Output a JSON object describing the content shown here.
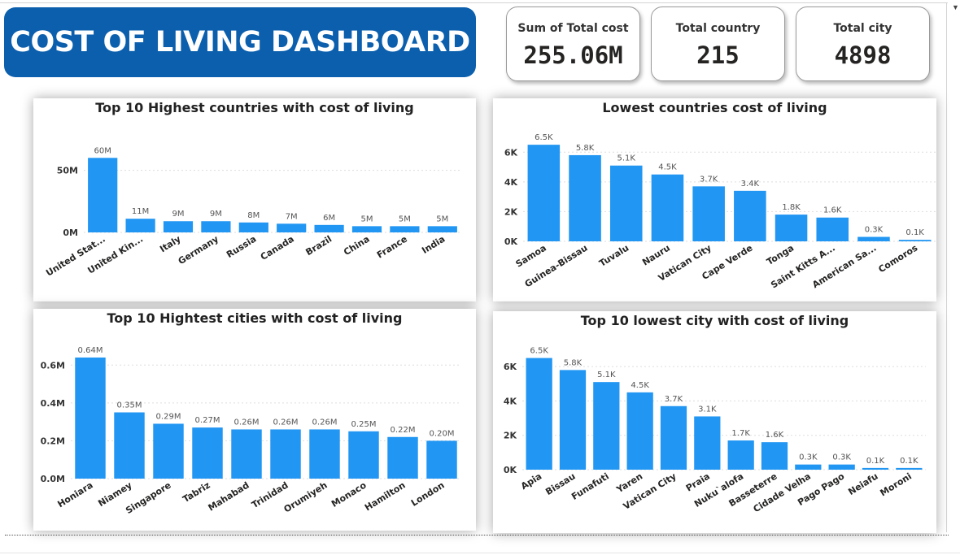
{
  "header": {
    "title": "COST OF LIVING DASHBOARD"
  },
  "kpis": [
    {
      "label": "Sum of Total cost",
      "value": "255.06M"
    },
    {
      "label": "Total country",
      "value": "215"
    },
    {
      "label": "Total city",
      "value": "4898"
    }
  ],
  "colors": {
    "bar": "#2196f3",
    "banner": "#0b5fad"
  },
  "chart_data": [
    {
      "type": "bar",
      "title": "Top 10 Highest countries with cost of living",
      "categories": [
        "United Stat...",
        "United Kin...",
        "Italy",
        "Germany",
        "Russia",
        "Canada",
        "Brazil",
        "China",
        "France",
        "India"
      ],
      "values": [
        60,
        11,
        9,
        9,
        8,
        7,
        6,
        5,
        5,
        5
      ],
      "data_labels": [
        "60M",
        "11M",
        "9M",
        "9M",
        "8M",
        "7M",
        "6M",
        "5M",
        "5M",
        "5M"
      ],
      "yticks": [
        0,
        50
      ],
      "ytick_labels": [
        "0M",
        "50M"
      ],
      "ylim": [
        0,
        70
      ],
      "unit": "M",
      "grid": true
    },
    {
      "type": "bar",
      "title": "Lowest countries cost of living",
      "categories": [
        "Samoa",
        "Guinea-Bissau",
        "Tuvalu",
        "Nauru",
        "Vatican City",
        "Cape Verde",
        "Tonga",
        "Saint Kitts A...",
        "American Sa...",
        "Comoros"
      ],
      "values": [
        6.5,
        5.8,
        5.1,
        4.5,
        3.7,
        3.4,
        1.8,
        1.6,
        0.3,
        0.1
      ],
      "data_labels": [
        "6.5K",
        "5.8K",
        "5.1K",
        "4.5K",
        "3.7K",
        "3.4K",
        "1.8K",
        "1.6K",
        "0.3K",
        "0.1K"
      ],
      "yticks": [
        0,
        2,
        4,
        6
      ],
      "ytick_labels": [
        "0K",
        "2K",
        "4K",
        "6K"
      ],
      "ylim": [
        0,
        7
      ],
      "unit": "K",
      "grid": true
    },
    {
      "type": "bar",
      "title": "Top 10 Hightest cities with cost of living",
      "categories": [
        "Honiara",
        "Niamey",
        "Singapore",
        "Tabriz",
        "Mahabad",
        "Trinidad",
        "Orumiyeh",
        "Monaco",
        "Hamilton",
        "London"
      ],
      "values": [
        0.64,
        0.35,
        0.29,
        0.27,
        0.26,
        0.26,
        0.26,
        0.25,
        0.22,
        0.2
      ],
      "data_labels": [
        "0.64M",
        "0.35M",
        "0.29M",
        "0.27M",
        "0.26M",
        "0.26M",
        "0.26M",
        "0.25M",
        "0.22M",
        "0.20M"
      ],
      "yticks": [
        0,
        0.2,
        0.4,
        0.6
      ],
      "ytick_labels": [
        "0.0M",
        "0.2M",
        "0.4M",
        "0.6M"
      ],
      "ylim": [
        0,
        0.7
      ],
      "unit": "M",
      "grid": true
    },
    {
      "type": "bar",
      "title": "Top 10 lowest city with cost of living",
      "categories": [
        "Apia",
        "Bissau",
        "Funafuti",
        "Yaren",
        "Vatican City",
        "Praia",
        "Nuku`alofa",
        "Basseterre",
        "Cidade Velha",
        "Pago Pago",
        "Neiafu",
        "Moroni"
      ],
      "values": [
        6.5,
        5.8,
        5.1,
        4.5,
        3.7,
        3.1,
        1.7,
        1.6,
        0.3,
        0.3,
        0.1,
        0.1
      ],
      "data_labels": [
        "6.5K",
        "5.8K",
        "5.1K",
        "4.5K",
        "3.7K",
        "3.1K",
        "1.7K",
        "1.6K",
        "0.3K",
        "0.3K",
        "0.1K",
        "0.1K"
      ],
      "yticks": [
        0,
        2,
        4,
        6
      ],
      "ytick_labels": [
        "0K",
        "2K",
        "4K",
        "6K"
      ],
      "ylim": [
        0,
        7
      ],
      "unit": "K",
      "grid": true
    }
  ]
}
